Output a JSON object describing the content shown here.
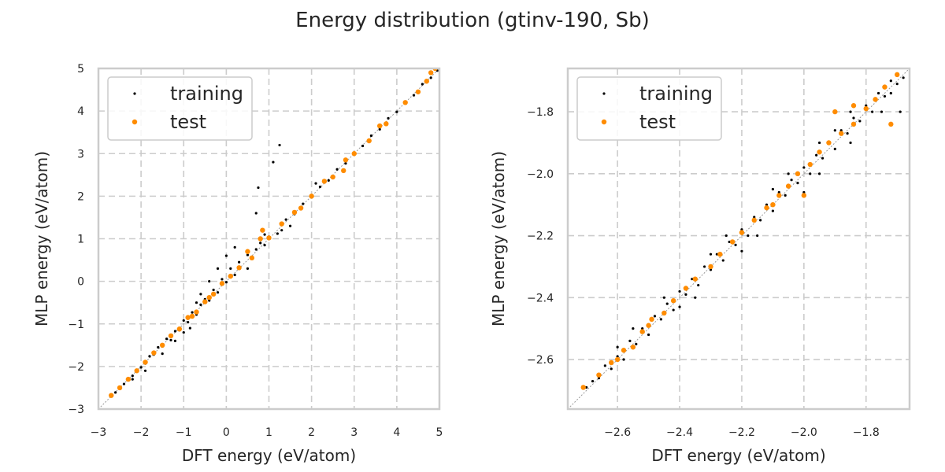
{
  "figure": {
    "title": "Energy distribution (gtinv-190, Sb)",
    "colors": {
      "training": "#000000",
      "test": "#ff8c00",
      "grid": "#cccccc",
      "diagonal": "#999999"
    }
  },
  "chart_data": [
    {
      "type": "scatter",
      "title": "",
      "xlabel": "DFT energy (eV/atom)",
      "ylabel": "MLP energy (eV/atom)",
      "xlim": [
        -3,
        5
      ],
      "ylim": [
        -3,
        5
      ],
      "xticks": [
        -3,
        -2,
        -1,
        0,
        1,
        2,
        3,
        4,
        5
      ],
      "yticks": [
        -3,
        -2,
        -1,
        0,
        1,
        2,
        3,
        4,
        5
      ],
      "xtick_labels": [
        "−3",
        "−2",
        "−1",
        "0",
        "1",
        "2",
        "3",
        "4",
        "5"
      ],
      "ytick_labels": [
        "−3",
        "−2",
        "−1",
        "0",
        "1",
        "2",
        "3",
        "4",
        "5"
      ],
      "grid": true,
      "diagonal": true,
      "legend": {
        "location": "upper-left",
        "entries": [
          "training",
          "test"
        ]
      },
      "series": [
        {
          "name": "training",
          "color": "#000000",
          "points": [
            [
              -2.7,
              -2.7
            ],
            [
              -2.6,
              -2.61
            ],
            [
              -2.5,
              -2.49
            ],
            [
              -2.4,
              -2.41
            ],
            [
              -2.3,
              -2.29
            ],
            [
              -2.2,
              -2.22
            ],
            [
              -2.1,
              -2.08
            ],
            [
              -2.0,
              -2.02
            ],
            [
              -1.9,
              -1.93
            ],
            [
              -1.8,
              -1.76
            ],
            [
              -1.7,
              -1.72
            ],
            [
              -1.6,
              -1.55
            ],
            [
              -1.5,
              -1.53
            ],
            [
              -1.4,
              -1.35
            ],
            [
              -1.3,
              -1.38
            ],
            [
              -1.2,
              -1.17
            ],
            [
              -1.1,
              -1.15
            ],
            [
              -1.0,
              -0.92
            ],
            [
              -0.9,
              -0.96
            ],
            [
              -0.8,
              -0.73
            ],
            [
              -0.7,
              -0.78
            ],
            [
              -0.6,
              -0.55
            ],
            [
              -0.5,
              -0.42
            ],
            [
              -0.4,
              -0.45
            ],
            [
              -0.3,
              -0.2
            ],
            [
              -0.2,
              -0.26
            ],
            [
              -0.1,
              0.05
            ],
            [
              0.0,
              -0.02
            ],
            [
              0.1,
              0.3
            ],
            [
              0.2,
              0.15
            ],
            [
              0.3,
              0.45
            ],
            [
              0.5,
              0.62
            ],
            [
              0.6,
              0.55
            ],
            [
              0.7,
              0.75
            ],
            [
              0.8,
              0.9
            ],
            [
              0.9,
              0.85
            ],
            [
              1.0,
              1.05
            ],
            [
              1.2,
              1.12
            ],
            [
              1.4,
              1.45
            ],
            [
              1.6,
              1.58
            ],
            [
              1.8,
              1.82
            ],
            [
              2.0,
              1.97
            ],
            [
              2.2,
              2.22
            ],
            [
              2.4,
              2.37
            ],
            [
              2.6,
              2.63
            ],
            [
              2.8,
              2.77
            ],
            [
              3.0,
              3.02
            ],
            [
              3.2,
              3.18
            ],
            [
              3.4,
              3.42
            ],
            [
              3.6,
              3.57
            ],
            [
              3.8,
              3.83
            ],
            [
              4.0,
              3.98
            ],
            [
              4.2,
              4.22
            ],
            [
              4.4,
              4.37
            ],
            [
              4.6,
              4.63
            ],
            [
              4.8,
              4.78
            ],
            [
              4.95,
              4.95
            ],
            [
              -1.5,
              -1.7
            ],
            [
              -1.2,
              -1.4
            ],
            [
              -0.85,
              -1.1
            ],
            [
              -0.6,
              -0.3
            ],
            [
              -0.2,
              0.3
            ],
            [
              0.2,
              0.8
            ],
            [
              0.5,
              0.3
            ],
            [
              0.7,
              1.6
            ],
            [
              0.75,
              2.2
            ],
            [
              1.1,
              2.8
            ],
            [
              1.25,
              3.2
            ],
            [
              0.0,
              0.6
            ],
            [
              -0.4,
              0.0
            ],
            [
              1.5,
              1.3
            ],
            [
              2.1,
              2.3
            ],
            [
              -1.9,
              -2.1
            ],
            [
              -2.2,
              -2.3
            ],
            [
              0.9,
              1.1
            ],
            [
              1.3,
              1.2
            ],
            [
              -1.0,
              -1.2
            ],
            [
              -0.7,
              -0.5
            ]
          ]
        },
        {
          "name": "test",
          "color": "#ff8c00",
          "points": [
            [
              -2.7,
              -2.68
            ],
            [
              -2.5,
              -2.5
            ],
            [
              -2.3,
              -2.3
            ],
            [
              -2.1,
              -2.1
            ],
            [
              -1.9,
              -1.9
            ],
            [
              -1.7,
              -1.68
            ],
            [
              -1.5,
              -1.5
            ],
            [
              -1.3,
              -1.28
            ],
            [
              -1.1,
              -1.12
            ],
            [
              -0.9,
              -0.85
            ],
            [
              -0.7,
              -0.72
            ],
            [
              -0.5,
              -0.48
            ],
            [
              -0.3,
              -0.3
            ],
            [
              -0.1,
              -0.05
            ],
            [
              0.1,
              0.12
            ],
            [
              0.3,
              0.32
            ],
            [
              0.6,
              0.55
            ],
            [
              0.8,
              1.0
            ],
            [
              0.85,
              1.2
            ],
            [
              1.0,
              1.02
            ],
            [
              1.3,
              1.35
            ],
            [
              1.6,
              1.62
            ],
            [
              2.0,
              2.0
            ],
            [
              2.3,
              2.35
            ],
            [
              2.5,
              2.45
            ],
            [
              2.75,
              2.6
            ],
            [
              2.8,
              2.85
            ],
            [
              3.0,
              3.0
            ],
            [
              3.35,
              3.3
            ],
            [
              3.6,
              3.65
            ],
            [
              3.75,
              3.7
            ],
            [
              4.2,
              4.2
            ],
            [
              4.5,
              4.45
            ],
            [
              4.7,
              4.7
            ],
            [
              4.8,
              4.9
            ],
            [
              4.9,
              5.0
            ],
            [
              0.5,
              0.7
            ],
            [
              -0.4,
              -0.38
            ],
            [
              -0.8,
              -0.82
            ],
            [
              1.75,
              1.72
            ]
          ]
        }
      ]
    },
    {
      "type": "scatter",
      "title": "",
      "xlabel": "DFT energy (eV/atom)",
      "ylabel": "MLP energy (eV/atom)",
      "xlim": [
        -2.76,
        -1.66
      ],
      "ylim": [
        -2.76,
        -1.66
      ],
      "xticks": [
        -2.6,
        -2.4,
        -2.2,
        -2.0,
        -1.8
      ],
      "yticks": [
        -2.6,
        -2.4,
        -2.2,
        -2.0,
        -1.8
      ],
      "xtick_labels": [
        "−2.6",
        "−2.4",
        "−2.2",
        "−2.0",
        "−1.8"
      ],
      "ytick_labels": [
        "−2.6",
        "−2.4",
        "−2.2",
        "−2.0",
        "−1.8"
      ],
      "grid": true,
      "diagonal": true,
      "legend": {
        "location": "upper-left",
        "entries": [
          "training",
          "test"
        ]
      },
      "series": [
        {
          "name": "training",
          "color": "#000000",
          "points": [
            [
              -2.7,
              -2.69
            ],
            [
              -2.68,
              -2.67
            ],
            [
              -2.66,
              -2.66
            ],
            [
              -2.64,
              -2.62
            ],
            [
              -2.62,
              -2.63
            ],
            [
              -2.6,
              -2.59
            ],
            [
              -2.58,
              -2.6
            ],
            [
              -2.56,
              -2.54
            ],
            [
              -2.54,
              -2.55
            ],
            [
              -2.52,
              -2.5
            ],
            [
              -2.5,
              -2.52
            ],
            [
              -2.48,
              -2.46
            ],
            [
              -2.46,
              -2.47
            ],
            [
              -2.44,
              -2.42
            ],
            [
              -2.42,
              -2.44
            ],
            [
              -2.4,
              -2.38
            ],
            [
              -2.38,
              -2.39
            ],
            [
              -2.36,
              -2.34
            ],
            [
              -2.34,
              -2.36
            ],
            [
              -2.32,
              -2.3
            ],
            [
              -2.3,
              -2.31
            ],
            [
              -2.28,
              -2.26
            ],
            [
              -2.26,
              -2.28
            ],
            [
              -2.24,
              -2.22
            ],
            [
              -2.22,
              -2.23
            ],
            [
              -2.2,
              -2.18
            ],
            [
              -2.18,
              -2.2
            ],
            [
              -2.16,
              -2.14
            ],
            [
              -2.14,
              -2.15
            ],
            [
              -2.12,
              -2.1
            ],
            [
              -2.1,
              -2.12
            ],
            [
              -2.08,
              -2.06
            ],
            [
              -2.06,
              -2.07
            ],
            [
              -2.04,
              -2.02
            ],
            [
              -2.02,
              -2.03
            ],
            [
              -2.0,
              -1.98
            ],
            [
              -1.98,
              -2.0
            ],
            [
              -1.96,
              -1.94
            ],
            [
              -1.94,
              -1.95
            ],
            [
              -1.92,
              -1.9
            ],
            [
              -1.9,
              -1.92
            ],
            [
              -1.88,
              -1.86
            ],
            [
              -1.86,
              -1.87
            ],
            [
              -1.84,
              -1.82
            ],
            [
              -1.82,
              -1.83
            ],
            [
              -1.8,
              -1.78
            ],
            [
              -1.78,
              -1.8
            ],
            [
              -1.76,
              -1.74
            ],
            [
              -1.74,
              -1.75
            ],
            [
              -1.72,
              -1.7
            ],
            [
              -1.7,
              -1.71
            ],
            [
              -1.68,
              -1.69
            ],
            [
              -2.55,
              -2.5
            ],
            [
              -2.45,
              -2.4
            ],
            [
              -2.35,
              -2.4
            ],
            [
              -2.25,
              -2.2
            ],
            [
              -2.15,
              -2.2
            ],
            [
              -2.05,
              -2.0
            ],
            [
              -1.95,
              -2.0
            ],
            [
              -1.85,
              -1.8
            ],
            [
              -1.75,
              -1.8
            ],
            [
              -2.1,
              -2.05
            ],
            [
              -2.0,
              -2.06
            ],
            [
              -1.9,
              -1.86
            ],
            [
              -1.85,
              -1.9
            ],
            [
              -1.72,
              -1.74
            ],
            [
              -1.69,
              -1.8
            ],
            [
              -2.3,
              -2.26
            ],
            [
              -2.4,
              -2.43
            ],
            [
              -2.6,
              -2.56
            ],
            [
              -2.2,
              -2.25
            ],
            [
              -1.95,
              -1.9
            ]
          ]
        },
        {
          "name": "test",
          "color": "#ff8c00",
          "points": [
            [
              -2.71,
              -2.69
            ],
            [
              -2.66,
              -2.65
            ],
            [
              -2.62,
              -2.61
            ],
            [
              -2.58,
              -2.57
            ],
            [
              -2.55,
              -2.56
            ],
            [
              -2.52,
              -2.51
            ],
            [
              -2.49,
              -2.47
            ],
            [
              -2.45,
              -2.45
            ],
            [
              -2.42,
              -2.41
            ],
            [
              -2.38,
              -2.37
            ],
            [
              -2.35,
              -2.34
            ],
            [
              -2.3,
              -2.3
            ],
            [
              -2.27,
              -2.26
            ],
            [
              -2.23,
              -2.22
            ],
            [
              -2.2,
              -2.19
            ],
            [
              -2.16,
              -2.15
            ],
            [
              -2.12,
              -2.11
            ],
            [
              -2.08,
              -2.07
            ],
            [
              -2.05,
              -2.04
            ],
            [
              -2.02,
              -2.0
            ],
            [
              -1.98,
              -1.97
            ],
            [
              -1.95,
              -1.93
            ],
            [
              -1.92,
              -1.9
            ],
            [
              -1.88,
              -1.87
            ],
            [
              -1.84,
              -1.84
            ],
            [
              -1.8,
              -1.79
            ],
            [
              -1.77,
              -1.76
            ],
            [
              -1.74,
              -1.72
            ],
            [
              -1.72,
              -1.84
            ],
            [
              -1.7,
              -1.68
            ],
            [
              -2.1,
              -2.1
            ],
            [
              -1.9,
              -1.8
            ],
            [
              -2.5,
              -2.49
            ],
            [
              -2.6,
              -2.6
            ],
            [
              -2.0,
              -2.07
            ],
            [
              -1.84,
              -1.78
            ]
          ]
        }
      ]
    }
  ]
}
